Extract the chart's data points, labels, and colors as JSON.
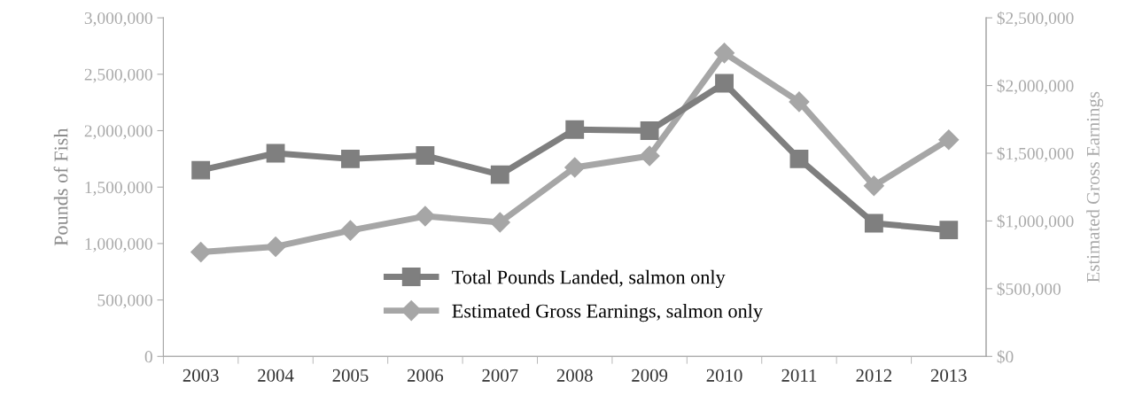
{
  "chart_data": {
    "type": "line",
    "ylabel": "Pounds of Fish",
    "y2label": "Estimated Gross Earnings",
    "categories": [
      "2003",
      "2004",
      "2005",
      "2006",
      "2007",
      "2008",
      "2009",
      "2010",
      "2011",
      "2012",
      "2013"
    ],
    "series": [
      {
        "name": "Total Pounds Landed, salmon only",
        "color": "#7f7f7f",
        "marker": "square",
        "values": [
          1650000,
          1800000,
          1750000,
          1780000,
          1610000,
          2010000,
          2000000,
          2420000,
          1750000,
          1180000,
          1120000
        ]
      },
      {
        "name": "Estimated Gross Earnings, salmon only",
        "color": "#a6a6a6",
        "marker": "diamond",
        "axis": "y2",
        "values": [
          770000,
          810000,
          930000,
          1035000,
          990000,
          1395000,
          1480000,
          2240000,
          1880000,
          1260000,
          1600000
        ]
      }
    ],
    "ylim": [
      0,
      3000000
    ],
    "yticks": [
      {
        "value": 0,
        "label": "0"
      },
      {
        "value": 500000,
        "label": "500,000"
      },
      {
        "value": 1000000,
        "label": "1,000,000"
      },
      {
        "value": 1500000,
        "label": "1,500,000"
      },
      {
        "value": 2000000,
        "label": "2,000,000"
      },
      {
        "value": 2500000,
        "label": "2,500,000"
      },
      {
        "value": 3000000,
        "label": "3,000,000"
      }
    ],
    "y2lim": [
      0,
      2500000
    ],
    "y2ticks": [
      {
        "value": 0,
        "label": "$0"
      },
      {
        "value": 500000,
        "label": "$500,000"
      },
      {
        "value": 1000000,
        "label": "$1,000,000"
      },
      {
        "value": 1500000,
        "label": "$1,500,000"
      },
      {
        "value": 2000000,
        "label": "$2,000,000"
      },
      {
        "value": 2500000,
        "label": "$2,500,000"
      }
    ],
    "grid": false,
    "legend": "bottom",
    "line_style": "solid"
  }
}
